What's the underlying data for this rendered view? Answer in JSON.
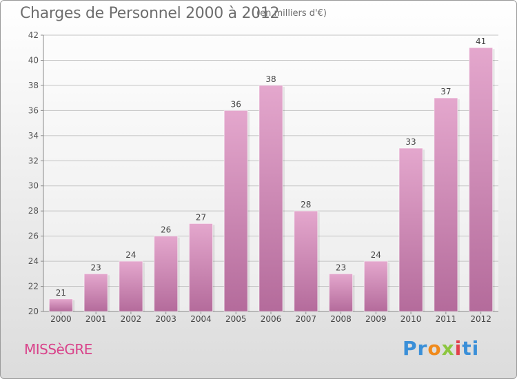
{
  "header": {
    "title": "Charges de Personnel 2000 à 2012",
    "subtitle": "(en milliers d'€)"
  },
  "footer": {
    "commune": "MISSèGRE",
    "logo": [
      "Pr",
      "o",
      "x",
      "i",
      "ti"
    ]
  },
  "colors": {
    "bar": "#d38db8",
    "bar_dark": "#b76a9c",
    "commune": "#d9428a"
  },
  "chart_data": {
    "type": "bar",
    "categories": [
      "2000",
      "2001",
      "2002",
      "2003",
      "2004",
      "2005",
      "2006",
      "2007",
      "2008",
      "2009",
      "2010",
      "2011",
      "2012"
    ],
    "values": [
      21,
      23,
      24,
      26,
      27,
      36,
      38,
      28,
      23,
      24,
      33,
      37,
      41
    ],
    "title": "Charges de Personnel 2000 à 2012",
    "ylim": [
      20,
      42
    ],
    "yticks": [
      20,
      22,
      24,
      26,
      28,
      30,
      32,
      34,
      36,
      38,
      40,
      42
    ],
    "grid": true
  }
}
